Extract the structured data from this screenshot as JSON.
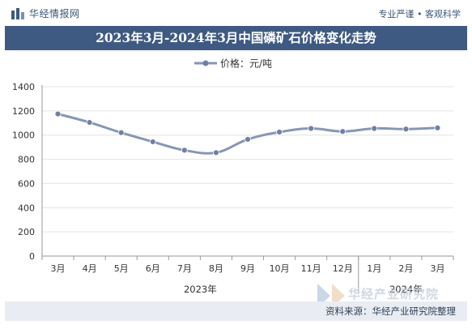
{
  "header": {
    "brand": "华经情报网",
    "tagline": "专业严谨 • 客观科学"
  },
  "footer": {
    "source": "资料来源：华经产业研究院整理",
    "watermark": "华经产业研究院"
  },
  "colors": {
    "title_bg": "#3f5a82",
    "line": "#8796b5",
    "marker": "#6f80a5",
    "grid": "#e3e3e3"
  },
  "chart_data": {
    "type": "line",
    "title": "2023年3月-2024年3月中国磷矿石价格变化走势",
    "categories": [
      "3月",
      "4月",
      "5月",
      "6月",
      "7月",
      "8月",
      "9月",
      "10月",
      "11月",
      "12月",
      "1月",
      "2月",
      "3月"
    ],
    "groups": [
      {
        "label": "2023年",
        "start": 0,
        "end": 9
      },
      {
        "label": "2024年",
        "start": 10,
        "end": 12
      }
    ],
    "series": [
      {
        "name": "价格：元/吨",
        "values": [
          1175,
          1105,
          1020,
          945,
          875,
          855,
          965,
          1025,
          1055,
          1030,
          1055,
          1050,
          1060
        ]
      }
    ],
    "ylim": [
      0,
      1400
    ],
    "yticks": [
      0,
      200,
      400,
      600,
      800,
      1000,
      1200,
      1400
    ],
    "legend_position": "top-center",
    "grid": true
  }
}
